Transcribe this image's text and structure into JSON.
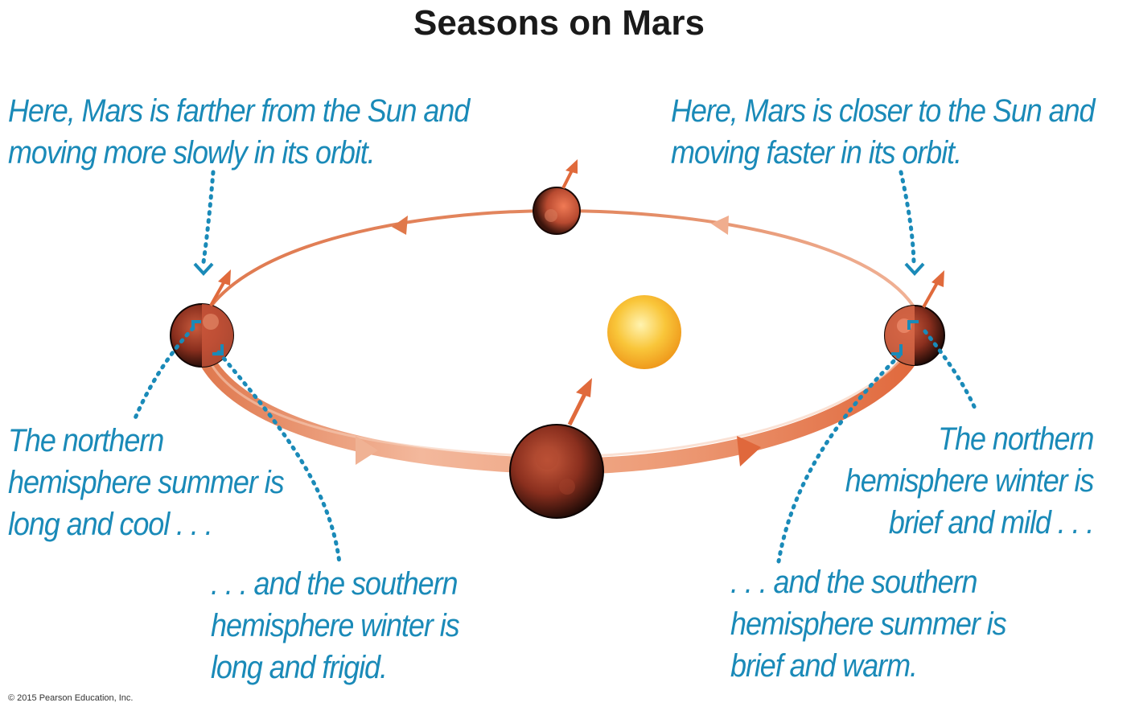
{
  "title": "Seasons on Mars",
  "colors": {
    "caption": "#1a8ab8",
    "orbit": "#e0784a",
    "orbit_light": "#f2b79a",
    "arrow": "#e06a3c",
    "sun": "#f7b72a",
    "pointer": "#1a8ab8"
  },
  "captions": {
    "far_point": [
      "Here, Mars is farther from the Sun and",
      "moving more slowly in its orbit."
    ],
    "near_point": [
      "Here, Mars is closer to the Sun and",
      "moving faster in its orbit."
    ],
    "north_summer": [
      "The northern",
      "hemisphere summer is",
      "long and cool . . ."
    ],
    "south_winter": [
      ". . . and the southern",
      "hemisphere winter is",
      "long and frigid."
    ],
    "north_winter": [
      "The northern",
      "hemisphere winter is",
      "brief and mild . . ."
    ],
    "south_summer": [
      ". . . and the southern",
      "hemisphere summer is",
      "brief and warm."
    ]
  },
  "copyright": "© 2015 Pearson Education, Inc.",
  "icons": {
    "sun": "sun-icon",
    "planet": "mars-planet-icon",
    "rotation_axis": "rotation-axis-arrow-icon",
    "orbit_direction": "orbit-direction-arrow-icon"
  }
}
